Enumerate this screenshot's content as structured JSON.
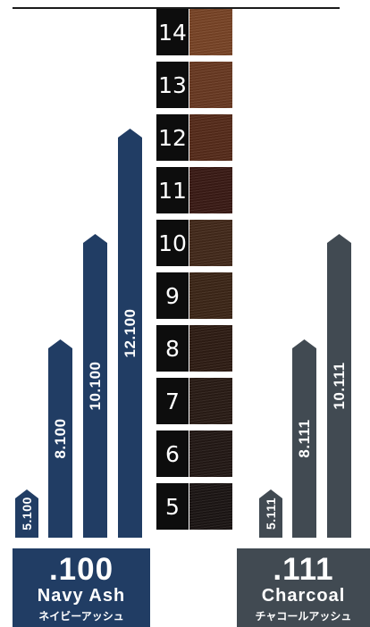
{
  "levels": [
    {
      "label": "14",
      "color": "#7a4527"
    },
    {
      "label": "13",
      "color": "#6a3a22"
    },
    {
      "label": "12",
      "color": "#572c1b"
    },
    {
      "label": "11",
      "color": "#3b1b15"
    },
    {
      "label": "10",
      "color": "#442a1b"
    },
    {
      "label": "9",
      "color": "#3d2718"
    },
    {
      "label": "8",
      "color": "#2f1d14"
    },
    {
      "label": "7",
      "color": "#2a1c16"
    },
    {
      "label": "6",
      "color": "#231915"
    },
    {
      "label": "5",
      "color": "#1c1614"
    }
  ],
  "navy_series": {
    "color": "#213d64",
    "arrows": [
      {
        "label": "5.100",
        "level": 5
      },
      {
        "label": "8.100",
        "level": 8
      },
      {
        "label": "10.100",
        "level": 10
      },
      {
        "label": "12.100",
        "level": 12
      }
    ],
    "code": ".100",
    "name_en": "Navy Ash",
    "name_jp": "ネイビーアッシュ"
  },
  "gray_series": {
    "color": "#414a52",
    "arrows": [
      {
        "label": "5.111",
        "level": 5
      },
      {
        "label": "8.111",
        "level": 8
      },
      {
        "label": "10.111",
        "level": 10
      }
    ],
    "code": ".111",
    "name_en": "Charcoal",
    "name_jp": "チャコールアッシュ"
  }
}
